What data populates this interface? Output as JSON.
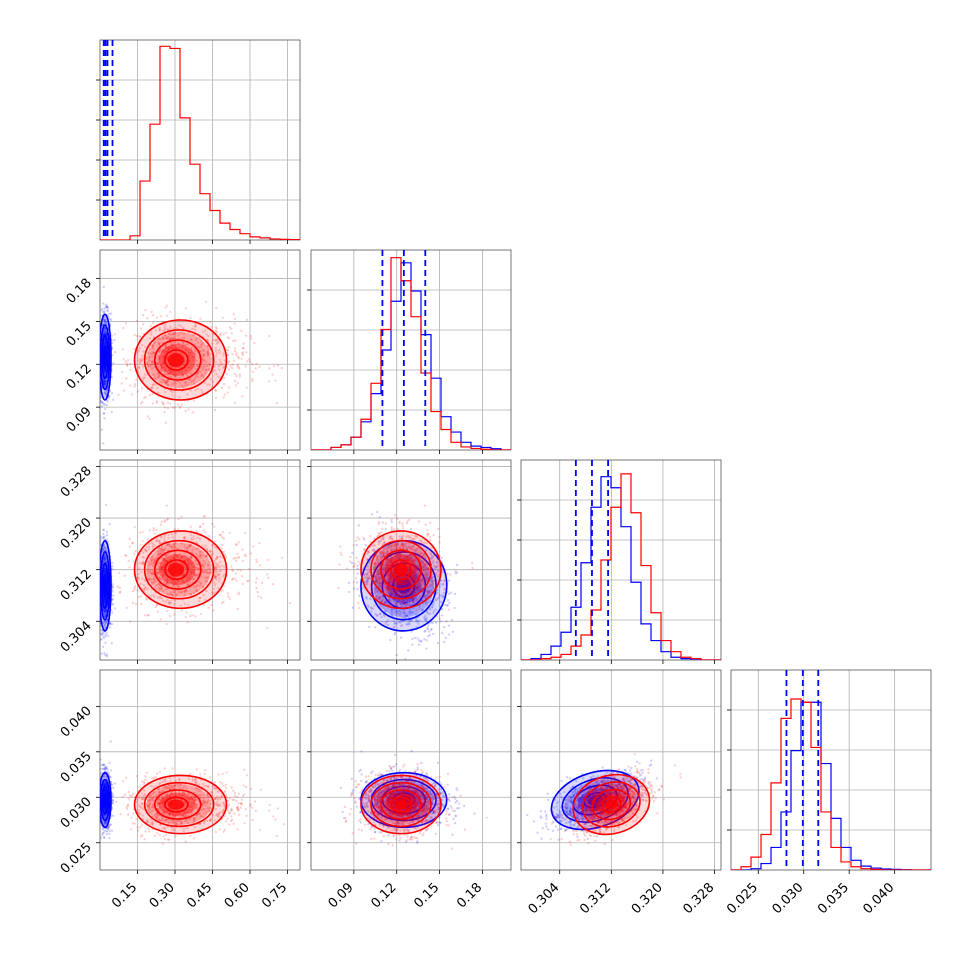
{
  "chart_data": {
    "type": "corner",
    "parameters": 4,
    "grid": true,
    "colors": {
      "blue": "#0000ff",
      "red": "#ff0000",
      "grid": "#b0b0b0"
    },
    "series": [
      {
        "color": "blue",
        "means": [
          0.02,
          0.125,
          0.3095,
          0.0297
        ],
        "sigmas": [
          0.012,
          0.015,
          0.0035,
          0.0015
        ],
        "correlations": {
          "p1_p2": 0.0,
          "p1_p3": 0.0,
          "p1_p4": 0.0,
          "p2_p3": -0.3,
          "p2_p4": 0.0,
          "p3_p4": 0.6
        }
      },
      {
        "color": "red",
        "means": [
          0.3,
          0.123,
          0.312,
          0.0292
        ],
        "sigmas": [
          0.08,
          0.014,
          0.003,
          0.0016
        ],
        "correlations": {
          "p1_p2": 0.0,
          "p1_p3": 0.0,
          "p1_p4": 0.0,
          "p2_p3": 0.0,
          "p2_p4": 0.0,
          "p3_p4": 0.5
        }
      }
    ],
    "quantile_lines": [
      [
        0.015,
        0.022,
        0.03
      ],
      [
        0.11,
        0.125,
        0.14
      ],
      [
        0.3065,
        0.309,
        0.3115
      ],
      [
        0.0281,
        0.0299,
        0.0316
      ]
    ],
    "truth_lines_p1": [
      0.015,
      0.022,
      0.03,
      0.05
    ],
    "axes": [
      {
        "range": [
          0.0,
          0.8
        ],
        "ticks": [
          0.15,
          0.3,
          0.45,
          0.6,
          0.75
        ],
        "tick_labels": [
          "0.15",
          "0.30",
          "0.45",
          "0.60",
          "0.75"
        ]
      },
      {
        "range": [
          0.06,
          0.2
        ],
        "ticks": [
          0.09,
          0.12,
          0.15,
          0.18
        ],
        "tick_labels": [
          "0.09",
          "0.12",
          "0.15",
          "0.18"
        ]
      },
      {
        "range": [
          0.298,
          0.329
        ],
        "ticks": [
          0.304,
          0.312,
          0.32,
          0.328
        ],
        "tick_labels": [
          "0.304",
          "0.312",
          "0.320",
          "0.328"
        ]
      },
      {
        "range": [
          0.022,
          0.044
        ],
        "ticks": [
          0.025,
          0.03,
          0.035,
          0.04
        ],
        "tick_labels": [
          "0.025",
          "0.030",
          "0.035",
          "0.040"
        ]
      }
    ],
    "hist_1d": {
      "p1": {
        "bins": [
          0.0,
          0.8
        ],
        "red": [
          0,
          0,
          0,
          0.02,
          0.28,
          0.55,
          0.92,
          0.91,
          0.58,
          0.36,
          0.22,
          0.14,
          0.08,
          0.05,
          0.03,
          0.015,
          0.01,
          0.005,
          0.003,
          0.002
        ],
        "ylim": [
          0,
          0.95
        ]
      },
      "p2": {
        "bins": [
          0.06,
          0.2
        ],
        "blue": [
          0,
          0,
          0.01,
          0.02,
          0.05,
          0.11,
          0.22,
          0.39,
          0.58,
          0.73,
          0.62,
          0.45,
          0.28,
          0.13,
          0.07,
          0.03,
          0.015,
          0.01,
          0.005,
          0
        ],
        "red": [
          0,
          0,
          0.01,
          0.02,
          0.05,
          0.12,
          0.26,
          0.47,
          0.75,
          0.66,
          0.52,
          0.3,
          0.15,
          0.08,
          0.03,
          0.012,
          0.006,
          0.003,
          0,
          0
        ],
        "ylim": [
          0,
          0.78
        ]
      },
      "p3": {
        "bins": [
          0.298,
          0.329
        ],
        "blue": [
          0,
          0.005,
          0.02,
          0.05,
          0.1,
          0.19,
          0.35,
          0.55,
          0.66,
          0.62,
          0.48,
          0.28,
          0.13,
          0.07,
          0.03,
          0.01,
          0.005,
          0,
          0,
          0
        ],
        "red": [
          0,
          0,
          0.005,
          0.01,
          0.02,
          0.05,
          0.09,
          0.18,
          0.36,
          0.55,
          0.67,
          0.53,
          0.34,
          0.17,
          0.07,
          0.03,
          0.01,
          0.005,
          0,
          0
        ],
        "ylim": [
          0,
          0.72
        ]
      },
      "p4": {
        "bins": [
          0.022,
          0.044
        ],
        "blue": [
          0,
          0,
          0.004,
          0.02,
          0.07,
          0.18,
          0.37,
          0.52,
          0.52,
          0.33,
          0.16,
          0.07,
          0.03,
          0.012,
          0.006,
          0.003,
          0.002,
          0.001,
          0,
          0
        ],
        "red": [
          0,
          0.01,
          0.04,
          0.11,
          0.27,
          0.47,
          0.53,
          0.52,
          0.38,
          0.18,
          0.07,
          0.025,
          0.01,
          0.004,
          0.002,
          0,
          0,
          0,
          0,
          0
        ],
        "ylim": [
          0,
          0.62
        ]
      }
    }
  }
}
